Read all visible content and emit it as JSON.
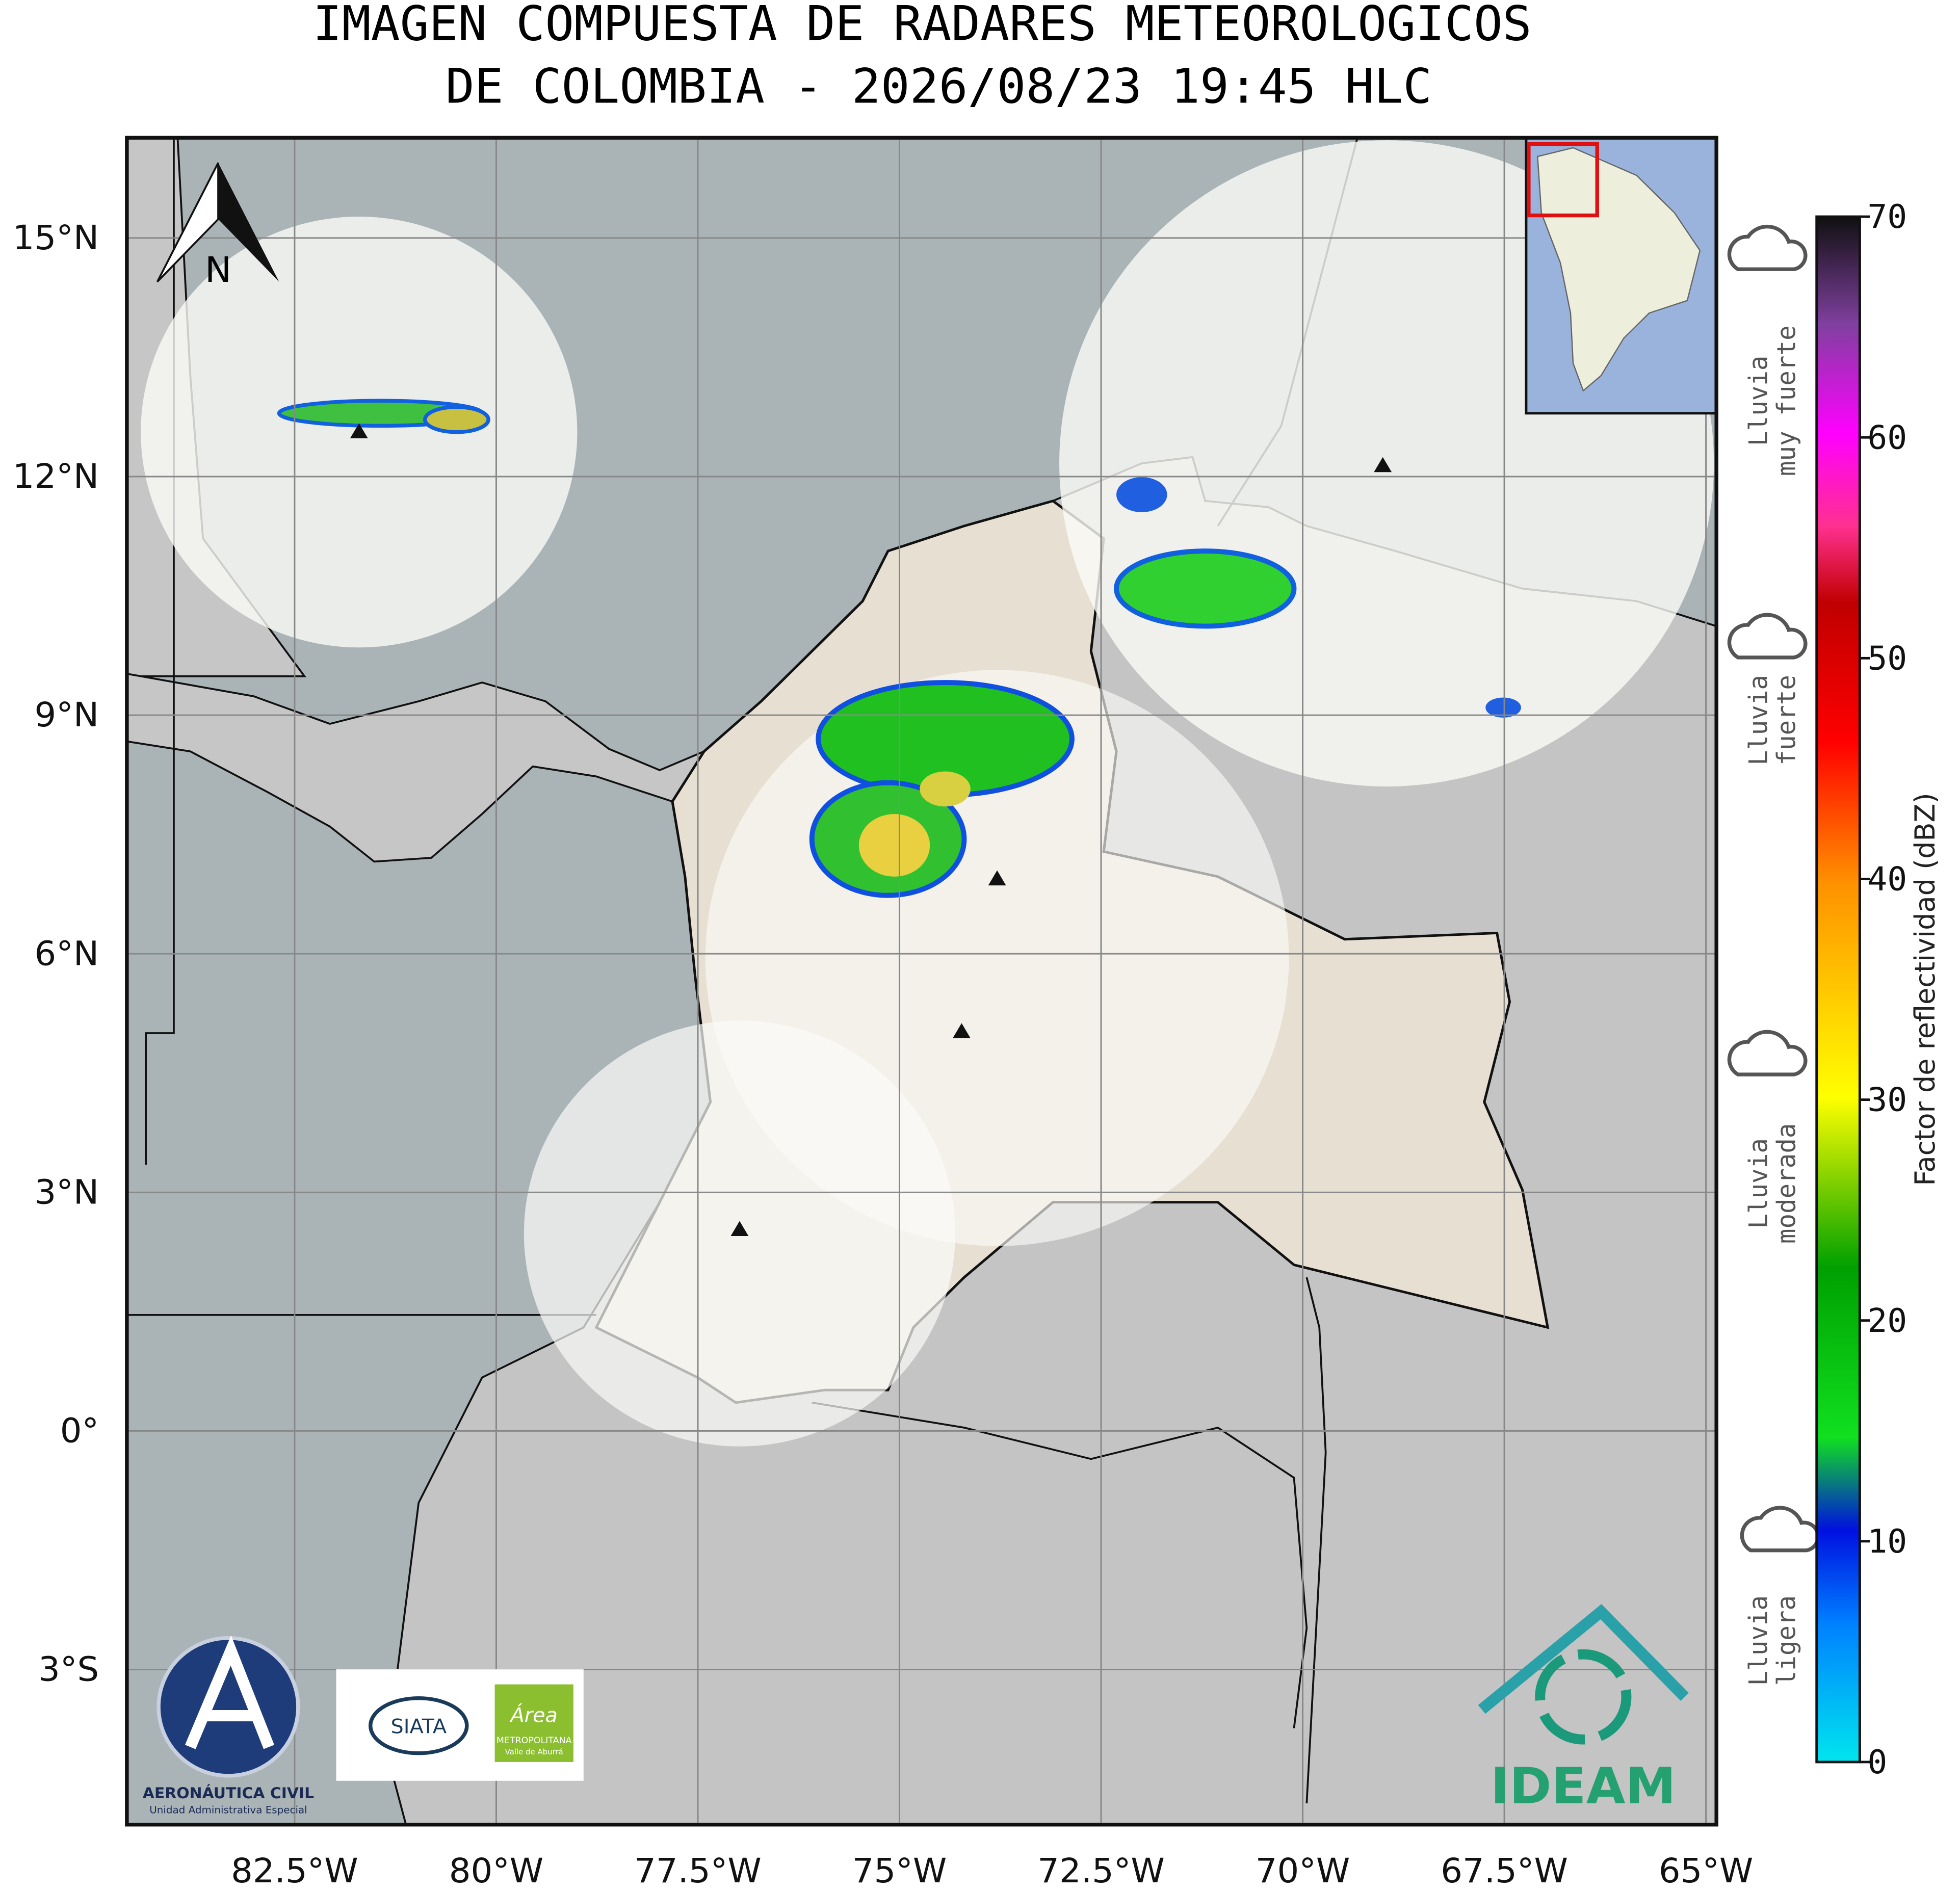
{
  "title": [
    "IMAGEN COMPUESTA DE RADARES METEOROLOGICOS",
    "DE COLOMBIA - 2026/08/23 19:45 HLC"
  ],
  "map": {
    "xlim": [
      -84.58,
      -64.87
    ],
    "ylim": [
      -4.95,
      16.26
    ],
    "xticks": [
      {
        "value": -82.5,
        "label": "82.5°W"
      },
      {
        "value": -80,
        "label": "80°W"
      },
      {
        "value": -77.5,
        "label": "77.5°W"
      },
      {
        "value": -75,
        "label": "75°W"
      },
      {
        "value": -72.5,
        "label": "72.5°W"
      },
      {
        "value": -70,
        "label": "70°W"
      },
      {
        "value": -67.5,
        "label": "67.5°W"
      },
      {
        "value": -65,
        "label": "65°W"
      }
    ],
    "yticks": [
      {
        "value": 15,
        "label": "15°N"
      },
      {
        "value": 12,
        "label": "12°N"
      },
      {
        "value": 9,
        "label": "9°N"
      },
      {
        "value": 6,
        "label": "6°N"
      },
      {
        "value": 3,
        "label": "3°N"
      },
      {
        "value": 0,
        "label": "0°"
      },
      {
        "value": -3,
        "label": "3°S"
      }
    ],
    "north_label": "N"
  },
  "colorbar": {
    "label": "Factor de reflectividad (dBZ)",
    "range": [
      0,
      70
    ],
    "ticks": [
      0,
      10,
      20,
      30,
      40,
      50,
      60,
      70
    ]
  },
  "rain_levels": [
    {
      "lines": [
        "Lluvia",
        "muy fuerte"
      ]
    },
    {
      "lines": [
        "Lluvia",
        "fuerte"
      ]
    },
    {
      "lines": [
        "Lluvia",
        "moderada"
      ]
    },
    {
      "lines": [
        "Lluvia",
        "ligera"
      ]
    }
  ],
  "logos": {
    "aeronautica": "AERONÁUTICA CIVIL",
    "aeronautica_sub": "Unidad Administrativa Especial",
    "siata": "SIATA",
    "area": "Área",
    "area_sub1": "METROPOLITANA",
    "area_sub2": "Valle de Aburrá",
    "ideam": "IDEAM"
  }
}
